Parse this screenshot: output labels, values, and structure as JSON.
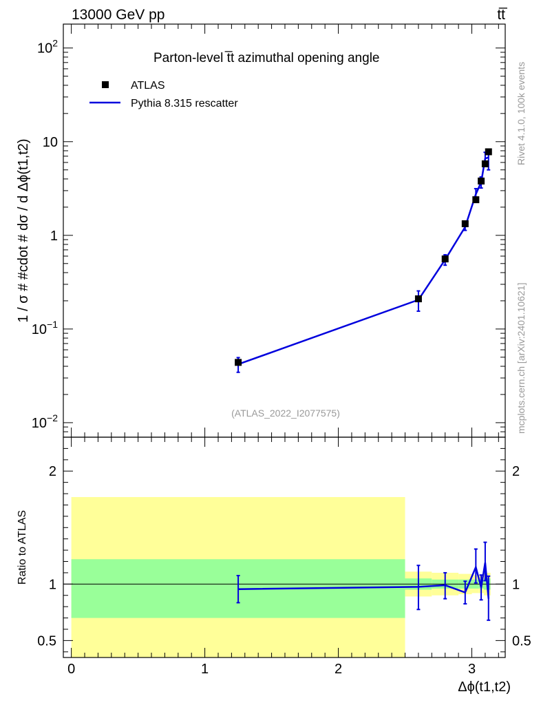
{
  "header": {
    "energy_label": "13000 GeV pp",
    "process_label": "tt̅"
  },
  "side_labels": {
    "rivet": "Rivet 4.1.0,  100k events",
    "mcplots": "mcplots.cern.ch [arXiv:2401.10621]"
  },
  "chart_data": [
    {
      "type": "line",
      "title": "Parton-level t̅t azimuthal opening angle",
      "ylabel": "1 / σ # #cdot # dσ / d Δϕ(t1,t2)",
      "yscale": "log",
      "ylim": [
        0.007,
        180
      ],
      "xlim": [
        -0.06,
        3.25
      ],
      "y_ticks": [
        {
          "value": 0.01,
          "base": "10",
          "exp": "−2"
        },
        {
          "value": 0.1,
          "base": "10",
          "exp": "−1"
        },
        {
          "value": 1,
          "base": "1",
          "exp": ""
        },
        {
          "value": 10,
          "base": "10",
          "exp": ""
        },
        {
          "value": 100,
          "base": "10",
          "exp": "2"
        }
      ],
      "analysis_label": "(ATLAS_2022_I2077575)",
      "legend": {
        "position": "top-left",
        "entries": [
          {
            "name": "ATLAS",
            "marker": "square",
            "color": "#000000"
          },
          {
            "name": "Pythia 8.315 rescatter",
            "marker": "line",
            "color": "#0000dd"
          }
        ]
      },
      "series": [
        {
          "name": "ATLAS",
          "x": [
            1.25,
            2.6,
            2.8,
            2.95,
            3.03,
            3.07,
            3.1,
            3.125
          ],
          "y": [
            0.044,
            0.21,
            0.56,
            1.33,
            2.4,
            3.8,
            5.8,
            7.8
          ],
          "yerr": [
            0.003,
            0.012,
            0.03,
            0.06,
            0.1,
            0.15,
            0.2,
            0.3
          ]
        },
        {
          "name": "Pythia 8.315 rescatter",
          "x": [
            1.25,
            2.6,
            2.8,
            2.95,
            3.03,
            3.07,
            3.1,
            3.125
          ],
          "y": [
            0.042,
            0.205,
            0.55,
            1.23,
            2.75,
            3.7,
            6.6,
            6.8
          ],
          "yerr_low": [
            0.0075,
            0.05,
            0.07,
            0.1,
            0.4,
            0.5,
            1.1,
            1.8
          ],
          "yerr_high": [
            0.0075,
            0.05,
            0.07,
            0.1,
            0.4,
            0.5,
            1.1,
            1.2
          ]
        }
      ]
    },
    {
      "type": "line",
      "ylabel": "Ratio to ATLAS",
      "xlabel": "Δϕ(t1,t2)",
      "ylim": [
        0.35,
        2.3
      ],
      "xlim": [
        -0.06,
        3.25
      ],
      "y_ticks": [
        0.5,
        1,
        2
      ],
      "x_ticks": [
        0,
        1,
        2,
        3
      ],
      "reference_line": 1,
      "uncertainty_bands": [
        {
          "x_low": 0.0,
          "x_high": 2.5,
          "inner": [
            0.7,
            1.22
          ],
          "outer": [
            0.35,
            1.77
          ]
        },
        {
          "x_low": 2.5,
          "x_high": 2.7,
          "inner": [
            0.95,
            1.05
          ],
          "outer": [
            0.89,
            1.11
          ]
        },
        {
          "x_low": 2.7,
          "x_high": 2.9,
          "inner": [
            0.96,
            1.04
          ],
          "outer": [
            0.9,
            1.1
          ]
        },
        {
          "x_low": 2.9,
          "x_high": 3.0,
          "inner": [
            0.96,
            1.04
          ],
          "outer": [
            0.91,
            1.09
          ]
        },
        {
          "x_low": 3.0,
          "x_high": 3.05,
          "inner": [
            0.96,
            1.04
          ],
          "outer": [
            0.92,
            1.08
          ]
        },
        {
          "x_low": 3.05,
          "x_high": 3.09,
          "inner": [
            0.96,
            1.04
          ],
          "outer": [
            0.92,
            1.08
          ]
        },
        {
          "x_low": 3.09,
          "x_high": 3.115,
          "inner": [
            0.95,
            1.05
          ],
          "outer": [
            0.9,
            1.1
          ]
        },
        {
          "x_low": 3.115,
          "x_high": 3.14,
          "inner": [
            0.95,
            1.05
          ],
          "outer": [
            0.9,
            1.1
          ]
        }
      ],
      "series": [
        {
          "name": "Pythia 8.315 rescatter",
          "x": [
            1.25,
            2.6,
            2.8,
            2.95,
            3.03,
            3.07,
            3.1,
            3.125
          ],
          "y": [
            0.955,
            0.975,
            0.99,
            0.925,
            1.15,
            0.97,
            1.19,
            0.87
          ],
          "yerr_low": [
            0.12,
            0.2,
            0.12,
            0.1,
            0.14,
            0.11,
            0.16,
            0.19
          ],
          "yerr_high": [
            0.12,
            0.19,
            0.11,
            0.1,
            0.16,
            0.11,
            0.18,
            0.2
          ]
        }
      ]
    }
  ]
}
